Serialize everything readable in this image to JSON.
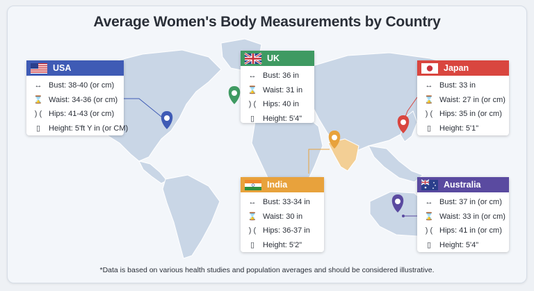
{
  "title": "Average Women's Body Measurements by Country",
  "footnote": "*Data is based on various health studies and population averages and should be considered illustrative.",
  "icons": {
    "bust": "left-right-arrow-icon",
    "waist": "hourglass-icon",
    "hips": "hips-parentheses-icon",
    "height": "ruler-icon"
  },
  "colors": {
    "usa": "#3f5bb5",
    "uk": "#3f9a62",
    "japan": "#d9463f",
    "india": "#e8a23c",
    "australia": "#5a4aa0",
    "map_land": "#c9d6e6",
    "background": "#f3f6fa"
  },
  "countries": [
    {
      "key": "usa",
      "name": "USA",
      "bust": "Bust: 38-40 (or cm)",
      "waist": "Waist: 34-36 (or cm)",
      "hips": "Hips: 41-43 (or cm)",
      "height": "Height: 5'ft Y in (or CM)"
    },
    {
      "key": "uk",
      "name": "UK",
      "bust": "Bust: 36 in",
      "waist": "Waist: 31 in",
      "hips": "Hips: 40 in",
      "height": "Height: 5'4\""
    },
    {
      "key": "japan",
      "name": "Japan",
      "bust": "Bust: 33 in",
      "waist": "Waist: 27 in (or cm)",
      "hips": "Hips: 35 in (or cm)",
      "height": "Height: 5'1\""
    },
    {
      "key": "india",
      "name": "India",
      "bust": "Bust: 33-34 in",
      "waist": "Waist: 30 in",
      "hips": "Hips: 36-37 in",
      "height": "Height: 5'2\""
    },
    {
      "key": "australia",
      "name": "Australia",
      "bust": "Bust: 37 in (or cm)",
      "waist": "Waist: 33 in (or cm)",
      "hips": "Hips: 41 in (or cm)",
      "height": "Height: 5'4\""
    }
  ]
}
